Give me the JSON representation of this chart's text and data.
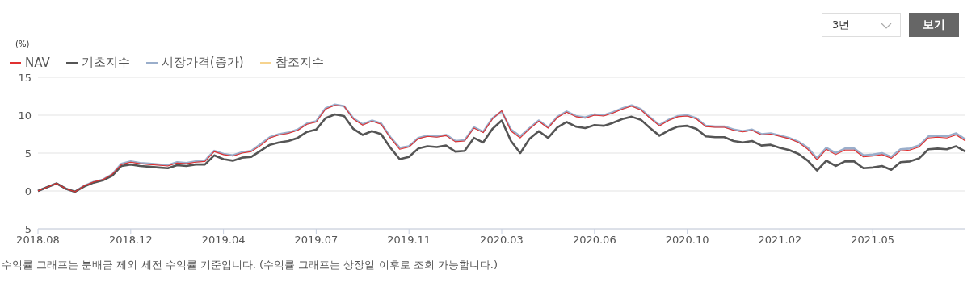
{
  "chart_data": {
    "type": "line",
    "ylabel": "(%)",
    "categories": [
      "2018.08",
      null,
      null,
      null,
      null,
      null,
      null,
      null,
      null,
      null,
      "2018.12",
      null,
      null,
      null,
      null,
      null,
      null,
      null,
      null,
      null,
      "2019.04",
      null,
      null,
      null,
      null,
      null,
      null,
      null,
      null,
      null,
      "2019.07",
      null,
      null,
      null,
      null,
      null,
      null,
      null,
      null,
      null,
      "2019.11",
      null,
      null,
      null,
      null,
      null,
      null,
      null,
      null,
      null,
      "2020.03",
      null,
      null,
      null,
      null,
      null,
      null,
      null,
      null,
      null,
      "2020.06",
      null,
      null,
      null,
      null,
      null,
      null,
      null,
      null,
      null,
      "2020.10",
      null,
      null,
      null,
      null,
      null,
      null,
      null,
      null,
      null,
      "2021.02",
      null,
      null,
      null,
      null,
      null,
      null,
      null,
      null,
      null,
      "2021.05",
      null,
      null,
      null,
      null,
      null,
      null,
      null,
      null,
      null,
      null
    ],
    "series": [
      {
        "name": "NAV",
        "color": "#e03030",
        "values": [
          0,
          0.5,
          1.0,
          0.3,
          -0.1,
          0.7,
          1.2,
          1.5,
          2.2,
          3.5,
          3.8,
          3.6,
          3.5,
          3.4,
          3.3,
          3.7,
          3.6,
          3.8,
          3.9,
          5.2,
          4.8,
          4.6,
          5.0,
          5.2,
          6.0,
          7.0,
          7.4,
          7.6,
          8.0,
          8.8,
          9.1,
          10.8,
          11.3,
          11.2,
          9.5,
          8.7,
          9.2,
          8.8,
          7.0,
          5.5,
          5.8,
          6.9,
          7.2,
          7.1,
          7.3,
          6.5,
          6.6,
          8.3,
          7.7,
          9.5,
          10.6,
          7.9,
          7.0,
          8.2,
          9.2,
          8.3,
          9.7,
          10.4,
          9.8,
          9.6,
          10.0,
          9.9,
          10.3,
          10.8,
          11.2,
          10.7,
          9.6,
          8.6,
          9.3,
          9.8,
          9.9,
          9.5,
          8.5,
          8.4,
          8.4,
          8.0,
          7.8,
          8.0,
          7.4,
          7.5,
          7.2,
          6.9,
          6.4,
          5.5,
          4.1,
          5.5,
          4.8,
          5.4,
          5.4,
          4.5,
          4.6,
          4.8,
          4.3,
          5.3,
          5.4,
          5.8,
          7.0,
          7.1,
          7.0,
          7.4,
          6.6
        ]
      },
      {
        "name": "기초지수",
        "color": "#555555",
        "values": [
          0,
          0.5,
          1.0,
          0.3,
          -0.1,
          0.6,
          1.1,
          1.4,
          2.0,
          3.3,
          3.5,
          3.3,
          3.2,
          3.1,
          3.0,
          3.4,
          3.3,
          3.5,
          3.5,
          4.7,
          4.2,
          4.0,
          4.4,
          4.5,
          5.3,
          6.1,
          6.4,
          6.6,
          7.0,
          7.8,
          8.1,
          9.6,
          10.1,
          9.9,
          8.2,
          7.4,
          7.9,
          7.5,
          5.7,
          4.2,
          4.5,
          5.6,
          5.9,
          5.8,
          6.0,
          5.2,
          5.3,
          7.0,
          6.4,
          8.2,
          9.3,
          6.6,
          5.0,
          6.9,
          7.9,
          7.0,
          8.4,
          9.1,
          8.5,
          8.3,
          8.7,
          8.6,
          9.0,
          9.5,
          9.8,
          9.4,
          8.3,
          7.3,
          8.0,
          8.5,
          8.6,
          8.2,
          7.2,
          7.1,
          7.1,
          6.6,
          6.4,
          6.6,
          6.0,
          6.1,
          5.7,
          5.4,
          4.9,
          4.0,
          2.7,
          4.0,
          3.3,
          3.9,
          3.9,
          3.0,
          3.1,
          3.3,
          2.8,
          3.8,
          3.9,
          4.3,
          5.5,
          5.6,
          5.5,
          5.9,
          5.2
        ]
      },
      {
        "name": "시장가격(종가)",
        "color": "#9aaecb",
        "values": [
          0,
          0.5,
          1.0,
          0.3,
          -0.1,
          0.7,
          1.2,
          1.5,
          2.2,
          3.6,
          3.9,
          3.7,
          3.6,
          3.5,
          3.4,
          3.8,
          3.7,
          3.9,
          4.0,
          5.3,
          4.9,
          4.7,
          5.1,
          5.3,
          6.2,
          7.1,
          7.5,
          7.7,
          8.1,
          8.9,
          9.2,
          10.9,
          11.4,
          11.2,
          9.6,
          8.8,
          9.3,
          8.9,
          7.1,
          5.7,
          5.9,
          7.0,
          7.3,
          7.2,
          7.4,
          6.6,
          6.7,
          8.4,
          7.8,
          9.6,
          10.5,
          8.1,
          7.2,
          8.3,
          9.3,
          8.4,
          9.8,
          10.5,
          9.9,
          9.7,
          10.1,
          10.0,
          10.4,
          10.9,
          11.3,
          10.8,
          9.7,
          8.7,
          9.4,
          9.9,
          10.0,
          9.6,
          8.6,
          8.5,
          8.5,
          8.1,
          7.9,
          8.1,
          7.5,
          7.6,
          7.3,
          7.0,
          6.5,
          5.7,
          4.3,
          5.7,
          5.0,
          5.6,
          5.6,
          4.7,
          4.8,
          5.0,
          4.5,
          5.5,
          5.6,
          6.0,
          7.2,
          7.3,
          7.2,
          7.6,
          6.8
        ]
      },
      {
        "name": "참조지수",
        "color": "#f6d38e",
        "values": [
          null,
          null,
          null,
          null,
          null,
          null,
          null,
          null,
          null,
          null,
          null,
          null,
          null,
          null,
          null,
          null,
          null,
          null,
          null,
          null,
          null,
          null,
          null,
          null,
          null,
          null,
          null,
          null,
          null,
          null,
          null,
          null,
          null,
          null,
          null,
          null,
          null,
          null,
          null,
          null,
          null,
          null,
          null,
          null,
          null,
          null,
          null,
          null,
          null,
          null,
          null,
          null,
          null,
          null,
          null,
          null,
          null,
          null,
          null,
          null,
          null,
          null,
          null,
          null,
          null,
          null,
          null,
          null,
          null,
          null,
          null,
          null,
          null,
          null,
          null,
          null,
          null,
          null,
          null,
          null,
          null,
          null,
          null,
          null,
          null,
          null,
          null,
          null,
          null,
          null,
          null,
          null,
          null,
          null,
          null,
          null,
          null,
          null,
          null,
          null,
          null
        ]
      }
    ],
    "ylim": [
      -5,
      15
    ],
    "yticks": [
      -5,
      0,
      5,
      10,
      15
    ],
    "grid": "y",
    "legend": "top left",
    "marker": "none",
    "line_style": "solid",
    "annotations": [
      "3년",
      "보기",
      "수익률 그래프는 분배금 제외 세전 수익률 기준입니다. (수익률 그래프는 상장일 이후로 조회 가능합니다.)"
    ]
  }
}
